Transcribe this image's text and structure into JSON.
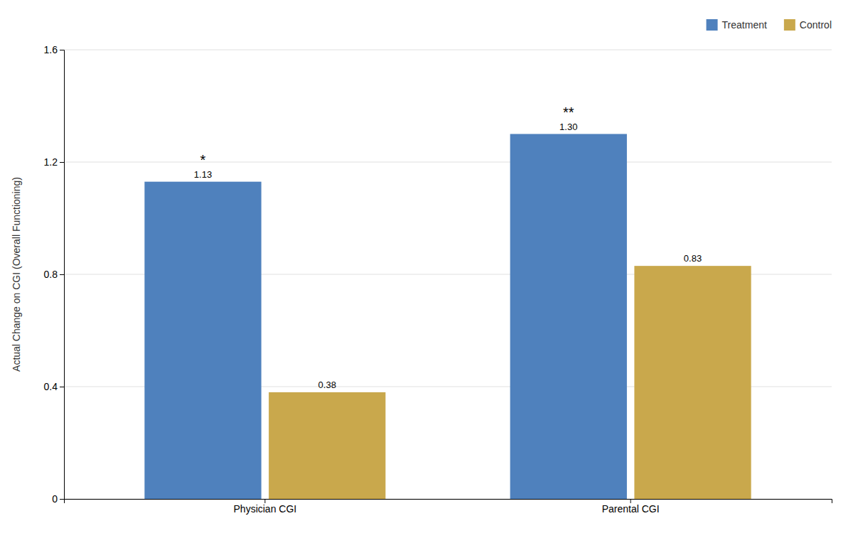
{
  "chart_data": {
    "type": "bar",
    "categories": [
      "Physician CGI",
      "Parental CGI"
    ],
    "series": [
      {
        "name": "Treatment",
        "color": "#4F81BD",
        "values": [
          1.13,
          1.3
        ],
        "value_labels": [
          "1.13",
          "1.30"
        ]
      },
      {
        "name": "Control",
        "color": "#C9A84C",
        "values": [
          0.38,
          0.83
        ],
        "value_labels": [
          "0.38",
          "0.83"
        ]
      }
    ],
    "ylabel": "Actual Change on CGI (Overall Functioning)",
    "ylim": [
      0,
      1.6
    ],
    "yticks": [
      0,
      0.4,
      0.8,
      1.2,
      1.6
    ],
    "grid": true,
    "legend": "upper right",
    "data_labels": true,
    "annotations": [
      {
        "text": "*",
        "x": "Physician CGI",
        "series": "Treatment"
      },
      {
        "text": "**",
        "x": "Parental CGI",
        "series": "Treatment"
      }
    ]
  }
}
